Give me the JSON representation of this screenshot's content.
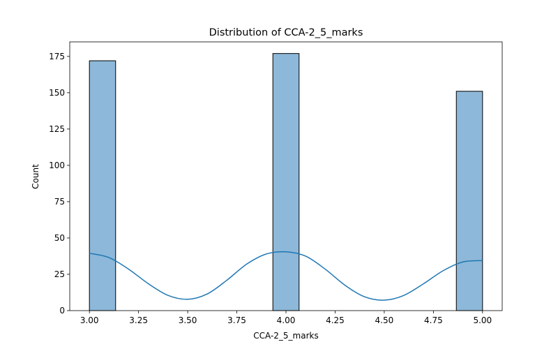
{
  "chart_data": {
    "type": "histogram",
    "title": "Distribution of CCA-2_5_marks",
    "xlabel": "CCA-2_5_marks",
    "ylabel": "Count",
    "xlim": [
      2.9,
      5.1
    ],
    "ylim": [
      0,
      185
    ],
    "x_ticks": [
      "3.00",
      "3.25",
      "3.50",
      "3.75",
      "4.00",
      "4.25",
      "4.50",
      "4.75",
      "5.00"
    ],
    "y_ticks": [
      "0",
      "25",
      "50",
      "75",
      "100",
      "125",
      "150",
      "175"
    ],
    "bin_width": 0.1333,
    "bins": [
      {
        "x0": 3.0,
        "x1": 3.1333,
        "count": 172
      },
      {
        "x0": 3.9333,
        "x1": 4.0667,
        "count": 177
      },
      {
        "x0": 4.8667,
        "x1": 5.0,
        "count": 151
      }
    ],
    "kde": {
      "x": [
        3.0,
        3.1,
        3.2,
        3.3,
        3.4,
        3.5,
        3.6,
        3.7,
        3.8,
        3.9,
        4.0,
        4.1,
        4.2,
        4.3,
        4.4,
        4.5,
        4.6,
        4.7,
        4.8,
        4.9,
        5.0
      ],
      "y": [
        39.5,
        36.5,
        28.5,
        18.5,
        10.5,
        7.8,
        11.5,
        21.0,
        32.0,
        39.0,
        40.5,
        37.5,
        28.5,
        17.5,
        9.5,
        7.2,
        10.5,
        18.5,
        27.5,
        33.5,
        34.5
      ]
    },
    "bar_color": "#8db8d9",
    "bar_edge_color": "#000000",
    "kde_color": "#1f77b4",
    "grid": false,
    "legend": "none"
  }
}
